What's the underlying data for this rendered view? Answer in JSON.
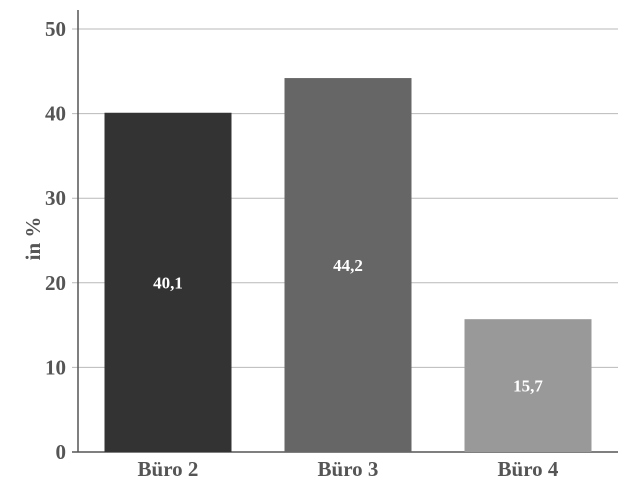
{
  "chart_data": {
    "type": "bar",
    "categories": [
      "Büro 2",
      "Büro 3",
      "Büro 4"
    ],
    "values": [
      40.1,
      44.2,
      15.7
    ],
    "data_labels": [
      "40,1",
      "44,2",
      "15,7"
    ],
    "bar_colors": [
      "#333333",
      "#666666",
      "#999999"
    ],
    "ylabel": "in %",
    "xlabel": "",
    "ylim": [
      0,
      50
    ],
    "yticks": [
      0,
      10,
      20,
      30,
      40,
      50
    ],
    "grid": true,
    "legend": "none"
  }
}
